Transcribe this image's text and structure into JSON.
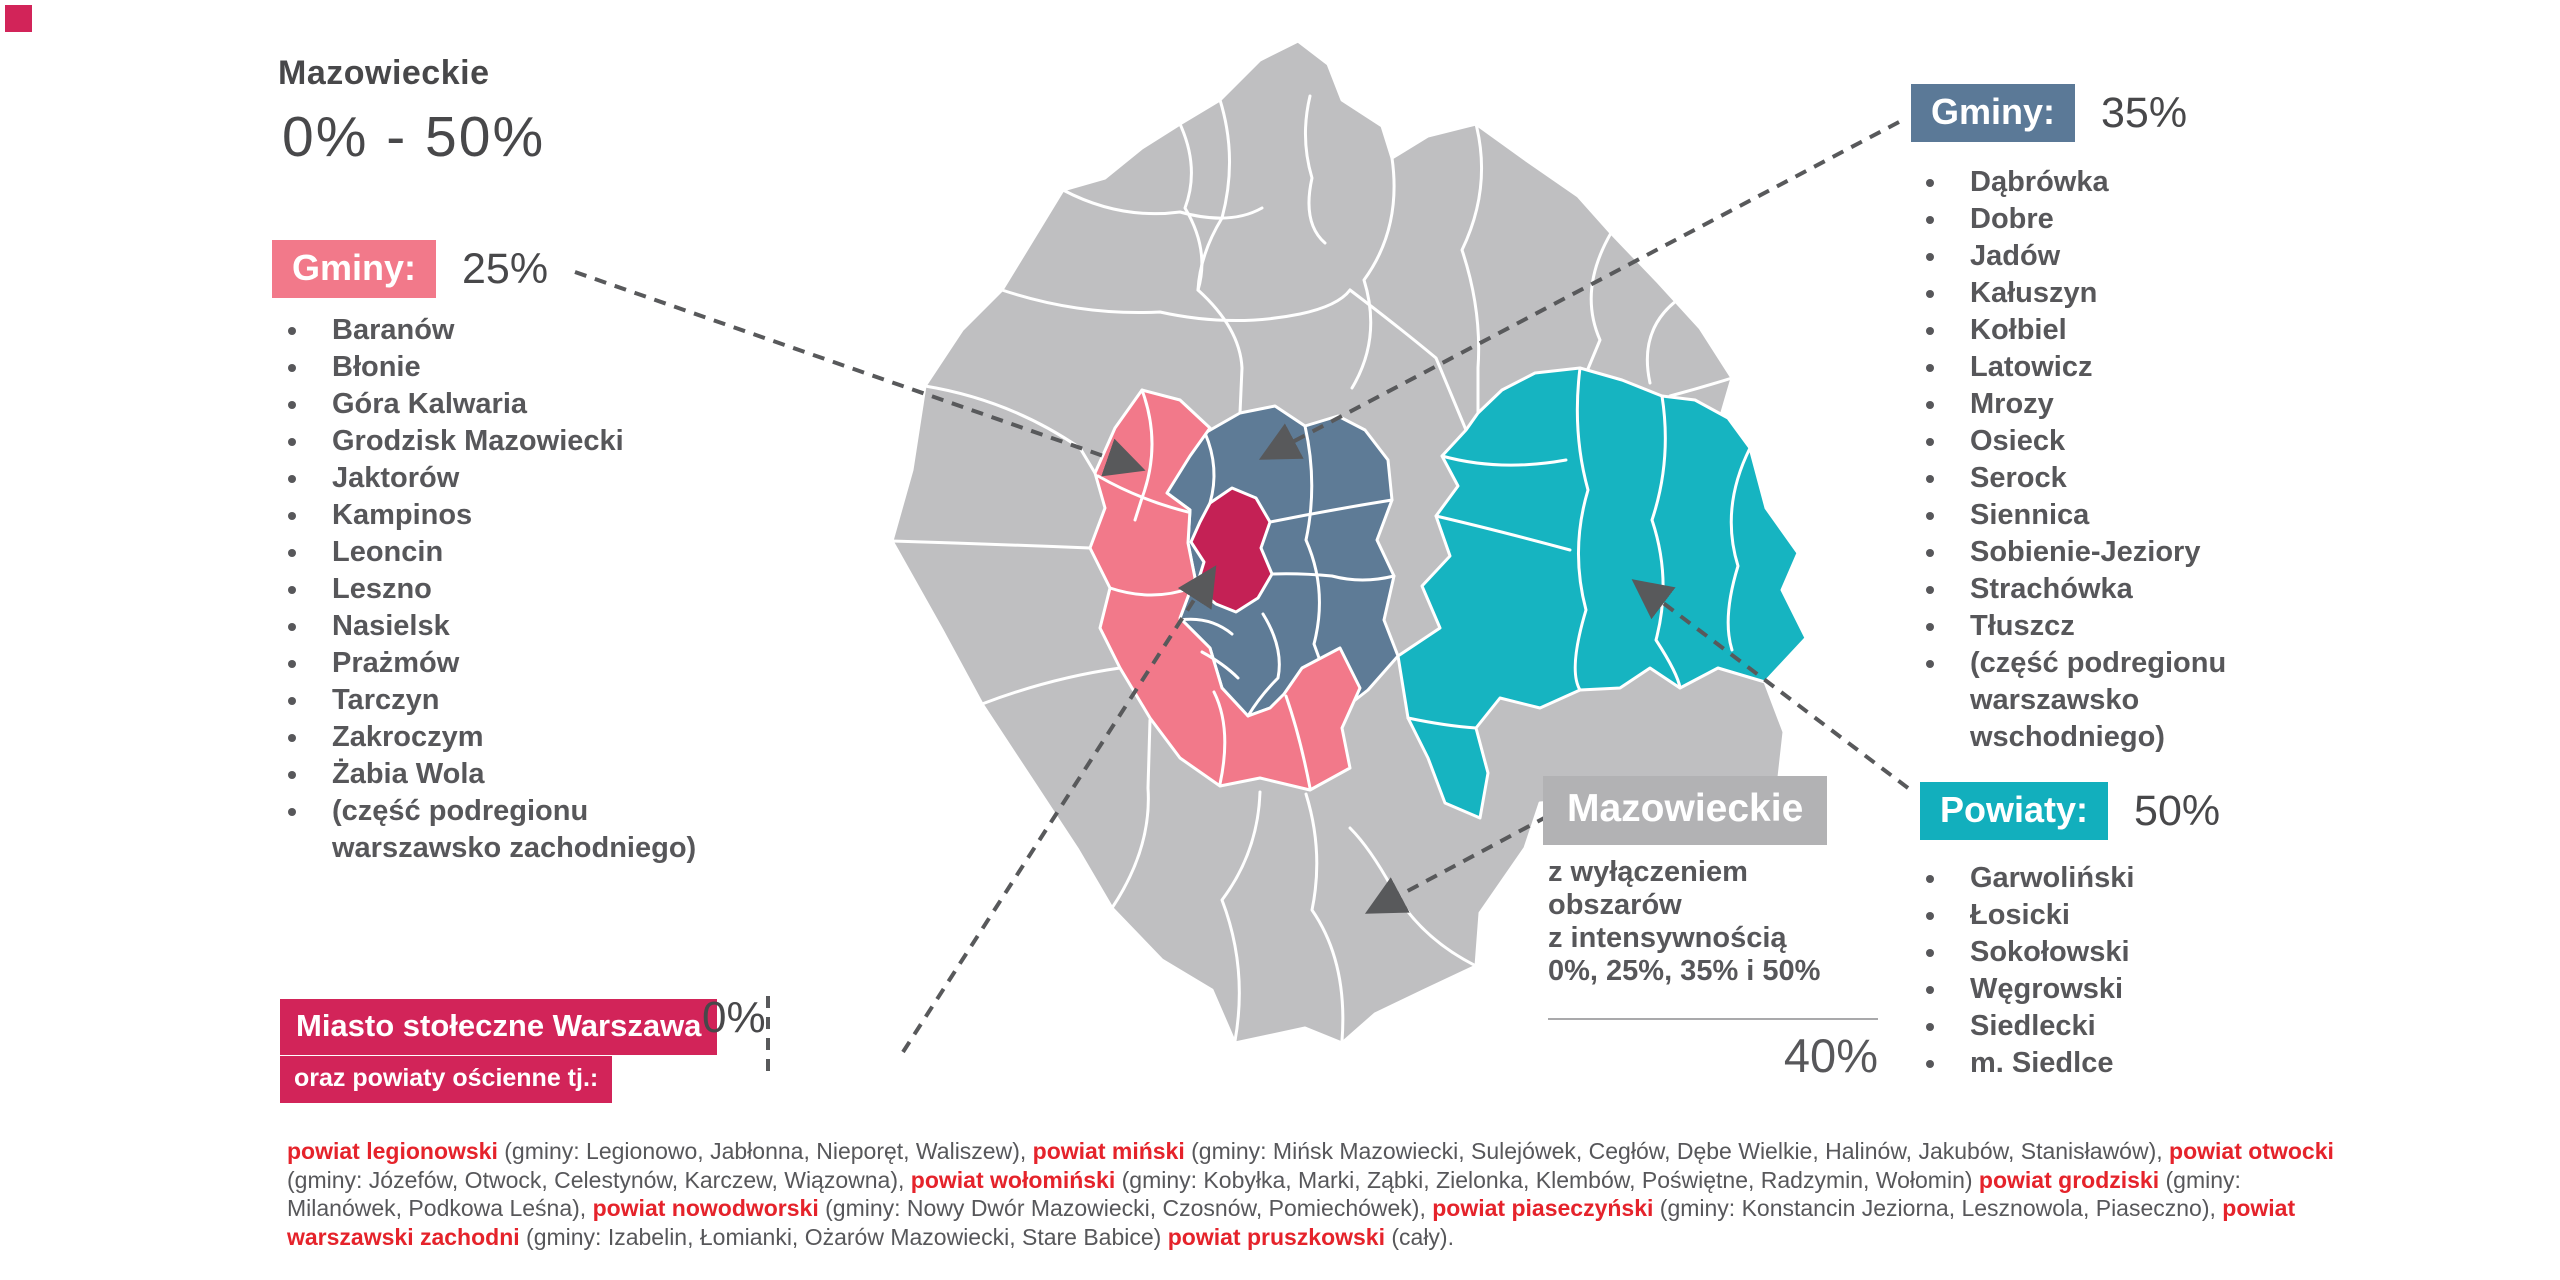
{
  "colors": {
    "pink": "#F2798A",
    "warsaw": "#C42155",
    "warsaw_badge": "#D22459",
    "slate": "#5E7B96",
    "slate_badge": "#5B7997",
    "teal": "#16B4C1",
    "teal_badge": "#12AFBD",
    "map_gray": "#BFBFC1",
    "badge_gray": "#B2B2B4",
    "red_text": "#E5232B",
    "arrow": "#58595B",
    "heading": "#48484A",
    "body": "#57575A"
  },
  "header": {
    "title": "Mazowieckie",
    "range": "0% - 50%"
  },
  "zone_25": {
    "label": "Gminy:",
    "value": "25%",
    "items": [
      "Baranów",
      "Błonie",
      "Góra Kalwaria",
      "Grodzisk Mazowiecki",
      "Jaktorów",
      "Kampinos",
      "Leoncin",
      "Leszno",
      "Nasielsk",
      "Prażmów",
      "Tarczyn",
      "Zakroczym",
      "Żabia Wola",
      "(część podregionu warszawsko zachodniego)"
    ]
  },
  "zone_35": {
    "label": "Gminy:",
    "value": "35%",
    "items": [
      "Dąbrówka",
      "Dobre",
      "Jadów",
      "Kałuszyn",
      "Kołbiel",
      "Latowicz",
      "Mrozy",
      "Osieck",
      "Serock",
      "Siennica",
      "Sobienie-Jeziory",
      "Strachówka",
      "Tłuszcz",
      "(część podregionu warszawsko wschodniego)"
    ]
  },
  "zone_50": {
    "label": "Powiaty:",
    "value": "50%",
    "items": [
      "Garwoliński",
      "Łosicki",
      "Sokołowski",
      "Węgrowski",
      "Siedlecki",
      "m. Siedlce"
    ]
  },
  "zone_0": {
    "label": "Miasto stołeczne Warszawa",
    "value": "0%",
    "sublabel": "oraz powiaty ościenne tj.:"
  },
  "zone_40": {
    "label": "Mazowieckie",
    "desc_lines": [
      "z wyłączeniem",
      "obszarów",
      "z intensywnością",
      "0%, 25%, 35% i 50%"
    ],
    "value": "40%"
  },
  "footnote_segments": [
    {
      "t": "powiat legionowski",
      "s": "red"
    },
    {
      "t": " (gminy: Legionowo, Jabłonna, Nieporęt, Waliszew), ",
      "s": "n"
    },
    {
      "t": "powiat miński",
      "s": "red"
    },
    {
      "t": " (gminy: Mińsk Mazowiecki, Sulejówek, Cegłów, Dębe Wielkie, Halinów, Jakubów, Stanisławów), ",
      "s": "n"
    },
    {
      "t": "powiat otwocki",
      "s": "red"
    },
    {
      "t": " (gminy: Józefów, Otwock, Celestynów, Karczew, Wiązowna), ",
      "s": "n"
    },
    {
      "t": "powiat wołomiński",
      "s": "red"
    },
    {
      "t": " (gminy: Kobyłka, Marki, Ząbki, Zielonka, Klembów, Poświętne, Radzymin, Wołomin) ",
      "s": "n"
    },
    {
      "t": "powiat grodziski",
      "s": "red"
    },
    {
      "t": " (gminy: Milanówek, Podkowa Leśna), ",
      "s": "n"
    },
    {
      "t": "powiat nowodworski",
      "s": "red"
    },
    {
      "t": " (gminy: Nowy Dwór Mazowiecki, Czosnów, Pomiechówek), ",
      "s": "n"
    },
    {
      "t": "powiat piaseczyński",
      "s": "red"
    },
    {
      "t": " (gminy: Konstancin Jeziorna, Lesznowola, Piaseczno), ",
      "s": "n"
    },
    {
      "t": "powiat warszawski zachodni",
      "s": "red"
    },
    {
      "t": " (gminy: Izabelin, Łomianki, Ożarów Mazowiecki, Stare Babice) ",
      "s": "n"
    },
    {
      "t": "powiat pruszkowski",
      "s": "red"
    },
    {
      "t": " (cały).",
      "s": "n"
    }
  ]
}
